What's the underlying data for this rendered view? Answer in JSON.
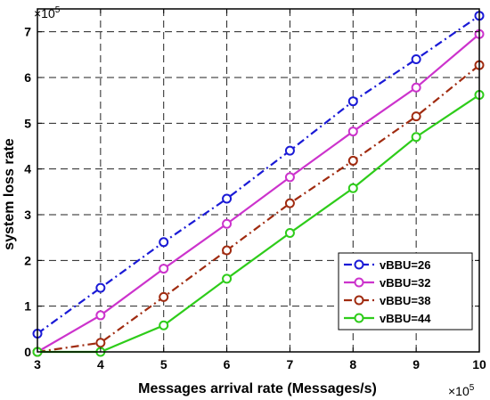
{
  "chart_data": {
    "type": "line",
    "xlabel": "Messages arrival rate (Messages/s)",
    "ylabel": "system loss rate",
    "x_exponent_label": "×10",
    "x_exponent_power": "5",
    "y_exponent_label": "×10",
    "y_exponent_power": "5",
    "xlim": [
      3,
      10
    ],
    "ylim": [
      0,
      7.5
    ],
    "x_tick_labels": [
      "3",
      "4",
      "5",
      "6",
      "7",
      "8",
      "9",
      "10"
    ],
    "y_tick_labels": [
      "0",
      "1",
      "2",
      "3",
      "4",
      "5",
      "6",
      "7"
    ],
    "grid": true,
    "legend_position": "lower-right",
    "x": [
      3,
      4,
      5,
      6,
      7,
      8,
      9,
      10
    ],
    "series": [
      {
        "name": "vBBU=26",
        "color": "#1a1ad6",
        "dash": "dashdot",
        "values": [
          0.4,
          1.4,
          2.4,
          3.35,
          4.4,
          5.48,
          6.4,
          7.35
        ]
      },
      {
        "name": "vBBU=32",
        "color": "#cc33cc",
        "dash": "solid",
        "values": [
          0.0,
          0.8,
          1.82,
          2.8,
          3.82,
          4.82,
          5.78,
          6.95
        ]
      },
      {
        "name": "vBBU=38",
        "color": "#a02b10",
        "dash": "dashdot",
        "values": [
          0.0,
          0.2,
          1.2,
          2.22,
          3.25,
          4.18,
          5.15,
          6.27
        ]
      },
      {
        "name": "vBBU=44",
        "color": "#2ecc1a",
        "dash": "solid",
        "values": [
          0.0,
          0.0,
          0.58,
          1.6,
          2.6,
          3.58,
          4.7,
          5.62
        ]
      }
    ]
  }
}
